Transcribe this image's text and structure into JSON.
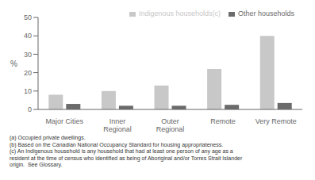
{
  "chart_data": {
    "type": "bar",
    "categories": [
      "Major Cities",
      "Inner\nRegional",
      "Outer\nRegional",
      "Remote",
      "Very Remote"
    ],
    "series": [
      {
        "name": "Indigenous households(c)",
        "color": "#c8c8c8",
        "values": [
          8,
          10,
          13,
          22,
          40
        ]
      },
      {
        "name": "Other households",
        "color": "#6b6b6b",
        "values": [
          3,
          2,
          2,
          2.5,
          3.5
        ]
      }
    ],
    "ylim": [
      0,
      50
    ],
    "yticks": [
      0,
      10,
      20,
      30,
      40,
      50
    ],
    "ylabel": "%",
    "legend": "upper right",
    "grid": false,
    "annotations": [
      "(a) Occupied private dwellings.",
      "(b) Based on the Canadian National Occupancy Standard for housing appropriateness.",
      "(c) An Indigenous household is any household that had at least one person of any age as a",
      "resident at the time of census who identified as being of Aboriginal and/or Torres Strait Islander",
      "origin.  See Glossary."
    ]
  }
}
